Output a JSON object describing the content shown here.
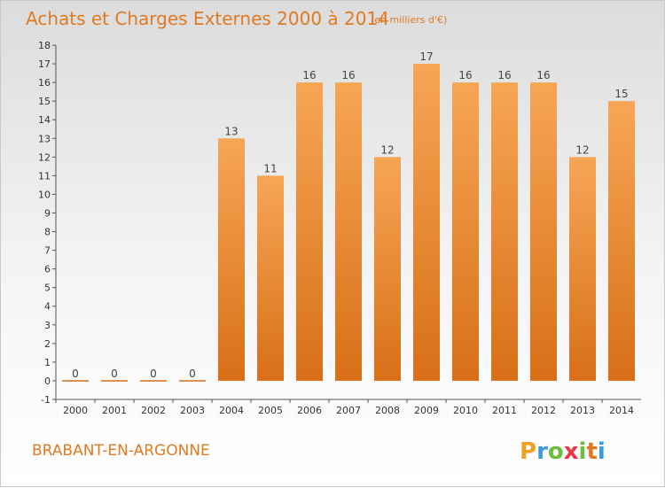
{
  "chart_data": {
    "type": "bar",
    "title": "Achats et Charges Externes 2000 à 2014",
    "subtitle": "(en milliers d'€)",
    "categories": [
      "2000",
      "2001",
      "2002",
      "2003",
      "2004",
      "2005",
      "2006",
      "2007",
      "2008",
      "2009",
      "2010",
      "2011",
      "2012",
      "2013",
      "2014"
    ],
    "values": [
      0,
      0,
      0,
      0,
      13,
      11,
      16,
      16,
      12,
      17,
      16,
      16,
      16,
      12,
      15
    ],
    "ylim": [
      -1,
      18
    ],
    "yticks": [
      -1,
      0,
      1,
      2,
      3,
      4,
      5,
      6,
      7,
      8,
      9,
      10,
      11,
      12,
      13,
      14,
      15,
      16,
      17,
      18
    ],
    "grid": false,
    "colors": {
      "bar_top": "#f7a655",
      "bar_bottom": "#d86f18",
      "title": "#e07a22"
    }
  },
  "commune": "BRABANT-EN-ARGONNE",
  "brand": {
    "name": "Proxiti",
    "letters": [
      "P",
      "r",
      "o",
      "x",
      "i",
      "t",
      "i"
    ],
    "colors": [
      "#f0a020",
      "#3a9ad9",
      "#6cbf3a",
      "#e63946",
      "#6cbf3a",
      "#e07a22",
      "#3a9ad9"
    ]
  }
}
